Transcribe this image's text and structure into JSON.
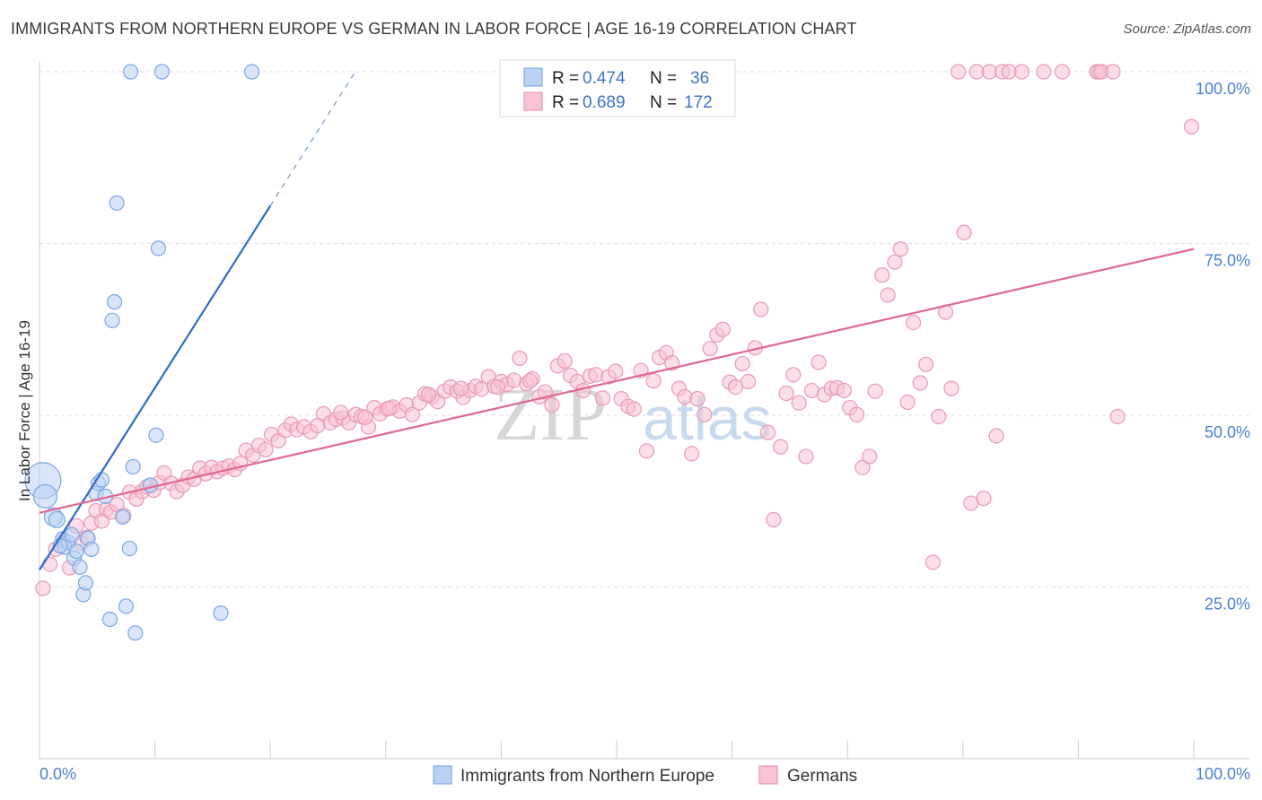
{
  "title": "IMMIGRANTS FROM NORTHERN EUROPE VS GERMAN IN LABOR FORCE | AGE 16-19 CORRELATION CHART",
  "source": "Source: ZipAtlas.com",
  "watermark": {
    "zip": "ZIP",
    "atlas": "atlas"
  },
  "legend_box": [
    {
      "r_label": "R =",
      "r_value": "0.474",
      "n_label": "N =",
      "n_value": "36",
      "fill": "#b9d2f4",
      "stroke": "#6f9ee0"
    },
    {
      "r_label": "R =",
      "r_value": "0.689",
      "n_label": "N =",
      "n_value": "172",
      "fill": "#f8c3d4",
      "stroke": "#e589a8"
    }
  ],
  "colors": {
    "blue_fill": "#b9d2f4",
    "blue_stroke": "#7aa6e3",
    "blue_line": "#2d6cc9",
    "pink_fill": "#f8c3d4",
    "pink_stroke": "#e999b4",
    "pink_line": "#e0678f",
    "grid": "#dddddd",
    "axis_label": "#4a7fd0"
  },
  "chart_data": {
    "type": "scatter",
    "title": "IMMIGRANTS FROM NORTHERN EUROPE VS GERMAN IN LABOR FORCE | AGE 16-19 CORRELATION CHART",
    "xlabel": "",
    "ylabel": "In Labor Force | Age 16-19",
    "xlim": [
      0,
      100
    ],
    "ylim": [
      0,
      100
    ],
    "x_tick_labels": [
      "0.0%",
      "100.0%"
    ],
    "y_tick_labels": [
      "25.0%",
      "50.0%",
      "75.0%",
      "100.0%"
    ],
    "y_ticks": [
      25,
      50,
      75,
      100
    ],
    "grid": true,
    "legend_position": "top-center",
    "series": [
      {
        "name": "Immigrants from Northern Europe",
        "color": "#b9d2f4",
        "stats": {
          "R": 0.474,
          "N": 36
        },
        "trend": {
          "x": [
            0,
            20
          ],
          "y": [
            27.5,
            80.5
          ],
          "dashed_to": [
            27.5,
            100
          ]
        },
        "points": [
          [
            0.3,
            40.5,
            20
          ],
          [
            0.5,
            38.2,
            13
          ],
          [
            1.2,
            35.2,
            10
          ],
          [
            1.5,
            34.8,
            9
          ],
          [
            2.0,
            32.0,
            8
          ],
          [
            2.2,
            30.8,
            8
          ],
          [
            3.0,
            29.2,
            8
          ],
          [
            3.5,
            27.9,
            8
          ],
          [
            4.2,
            32.1,
            8
          ],
          [
            4.5,
            30.5,
            8
          ],
          [
            3.8,
            23.9,
            8
          ],
          [
            4.0,
            25.6,
            8
          ],
          [
            4.9,
            38.6,
            8
          ],
          [
            5.1,
            40.1,
            8
          ],
          [
            5.4,
            40.6,
            8
          ],
          [
            5.7,
            38.2,
            8
          ],
          [
            7.2,
            35.2,
            8
          ],
          [
            7.8,
            30.6,
            8
          ],
          [
            6.1,
            20.3,
            8
          ],
          [
            7.5,
            22.2,
            8
          ],
          [
            8.3,
            18.3,
            8
          ],
          [
            9.6,
            39.8,
            8
          ],
          [
            10.1,
            47.1,
            8
          ],
          [
            8.1,
            42.5,
            8
          ],
          [
            6.3,
            63.8,
            8
          ],
          [
            6.5,
            66.5,
            8
          ],
          [
            6.7,
            80.9,
            8
          ],
          [
            10.3,
            74.3,
            8
          ],
          [
            7.9,
            100,
            8
          ],
          [
            10.6,
            100,
            8
          ],
          [
            18.4,
            100,
            8
          ],
          [
            15.7,
            21.2,
            8
          ],
          [
            2.5,
            31.5,
            8
          ],
          [
            1.8,
            31.0,
            8
          ],
          [
            3.2,
            30.2,
            8
          ],
          [
            2.8,
            32.6,
            8
          ]
        ]
      },
      {
        "name": "Germans",
        "color": "#f8c3d4",
        "stats": {
          "R": 0.689,
          "N": 172
        },
        "trend": {
          "x": [
            0,
            100
          ],
          "y": [
            35.8,
            74.2
          ]
        },
        "points": [
          [
            0.3,
            24.8,
            8
          ],
          [
            0.9,
            28.3,
            8
          ],
          [
            1.4,
            30.5,
            8
          ],
          [
            2.1,
            31.8,
            8
          ],
          [
            2.6,
            27.8,
            8
          ],
          [
            3.2,
            33.9,
            8
          ],
          [
            3.6,
            31.4,
            8
          ],
          [
            4.1,
            32.2,
            8
          ],
          [
            4.5,
            34.3,
            8
          ],
          [
            4.9,
            36.1,
            8
          ],
          [
            5.4,
            34.6,
            8
          ],
          [
            5.8,
            36.3,
            8
          ],
          [
            6.2,
            35.9,
            8
          ],
          [
            6.7,
            37.0,
            8
          ],
          [
            7.3,
            35.4,
            8
          ],
          [
            7.8,
            38.8,
            8
          ],
          [
            8.4,
            37.8,
            8
          ],
          [
            8.9,
            38.9,
            8
          ],
          [
            9.3,
            39.6,
            8
          ],
          [
            9.9,
            39.1,
            8
          ],
          [
            10.4,
            40.2,
            8
          ],
          [
            10.8,
            41.6,
            8
          ],
          [
            11.4,
            40.1,
            8
          ],
          [
            11.9,
            38.9,
            8
          ],
          [
            12.4,
            39.8,
            8
          ],
          [
            12.9,
            41.0,
            8
          ],
          [
            13.4,
            40.7,
            8
          ],
          [
            13.9,
            42.3,
            8
          ],
          [
            14.4,
            41.5,
            8
          ],
          [
            14.9,
            42.4,
            8
          ],
          [
            15.4,
            41.8,
            8
          ],
          [
            15.9,
            42.3,
            8
          ],
          [
            16.4,
            42.6,
            8
          ],
          [
            16.9,
            42.1,
            8
          ],
          [
            17.4,
            43.0,
            8
          ],
          [
            17.9,
            44.9,
            8
          ],
          [
            18.5,
            44.2,
            8
          ],
          [
            19.0,
            45.6,
            8
          ],
          [
            19.6,
            45.0,
            8
          ],
          [
            20.1,
            47.2,
            8
          ],
          [
            20.7,
            46.3,
            8
          ],
          [
            21.3,
            47.8,
            8
          ],
          [
            21.8,
            48.7,
            8
          ],
          [
            22.3,
            47.9,
            8
          ],
          [
            22.9,
            48.3,
            8
          ],
          [
            23.5,
            47.6,
            8
          ],
          [
            24.1,
            48.5,
            8
          ],
          [
            24.6,
            50.2,
            8
          ],
          [
            25.2,
            48.9,
            8
          ],
          [
            25.7,
            49.4,
            8
          ],
          [
            26.3,
            49.6,
            8
          ],
          [
            26.8,
            48.9,
            8
          ],
          [
            27.4,
            50.1,
            8
          ],
          [
            27.9,
            49.8,
            8
          ],
          [
            28.5,
            48.3,
            8
          ],
          [
            29.0,
            51.1,
            8
          ],
          [
            29.5,
            50.2,
            8
          ],
          [
            30.1,
            50.9,
            8
          ],
          [
            30.6,
            51.2,
            8
          ],
          [
            31.2,
            50.6,
            8
          ],
          [
            31.8,
            51.5,
            8
          ],
          [
            32.3,
            50.1,
            8
          ],
          [
            32.9,
            51.8,
            8
          ],
          [
            33.4,
            53.1,
            8
          ],
          [
            34.0,
            52.7,
            8
          ],
          [
            34.5,
            52.0,
            8
          ],
          [
            35.1,
            53.5,
            8
          ],
          [
            35.6,
            54.1,
            8
          ],
          [
            36.2,
            53.5,
            8
          ],
          [
            36.7,
            52.6,
            8
          ],
          [
            37.3,
            53.6,
            8
          ],
          [
            37.8,
            54.2,
            8
          ],
          [
            38.3,
            53.8,
            8
          ],
          [
            38.9,
            55.6,
            8
          ],
          [
            39.4,
            54.2,
            8
          ],
          [
            40.0,
            54.9,
            8
          ],
          [
            40.5,
            54.5,
            8
          ],
          [
            41.1,
            55.1,
            8
          ],
          [
            41.6,
            58.3,
            8
          ],
          [
            42.2,
            54.6,
            8
          ],
          [
            42.7,
            55.3,
            8
          ],
          [
            43.3,
            52.7,
            8
          ],
          [
            43.8,
            53.4,
            8
          ],
          [
            44.4,
            51.5,
            8
          ],
          [
            44.9,
            57.2,
            8
          ],
          [
            45.5,
            57.9,
            8
          ],
          [
            46.0,
            55.8,
            8
          ],
          [
            46.6,
            54.9,
            8
          ],
          [
            47.1,
            53.6,
            8
          ],
          [
            47.7,
            55.7,
            8
          ],
          [
            48.2,
            55.9,
            8
          ],
          [
            48.8,
            52.5,
            8
          ],
          [
            49.3,
            55.6,
            8
          ],
          [
            49.9,
            56.4,
            8
          ],
          [
            50.4,
            52.4,
            8
          ],
          [
            51.0,
            51.3,
            8
          ],
          [
            51.5,
            50.9,
            8
          ],
          [
            52.1,
            56.5,
            8
          ],
          [
            52.6,
            44.8,
            8
          ],
          [
            53.2,
            55.0,
            8
          ],
          [
            53.7,
            58.4,
            8
          ],
          [
            54.3,
            59.1,
            8
          ],
          [
            54.8,
            57.6,
            8
          ],
          [
            55.4,
            53.9,
            8
          ],
          [
            55.9,
            52.7,
            8
          ],
          [
            56.5,
            44.4,
            8
          ],
          [
            57.0,
            52.4,
            8
          ],
          [
            57.6,
            50.1,
            8
          ],
          [
            58.1,
            59.7,
            8
          ],
          [
            58.7,
            61.7,
            8
          ],
          [
            59.2,
            62.5,
            8
          ],
          [
            59.8,
            54.8,
            8
          ],
          [
            60.3,
            54.1,
            8
          ],
          [
            60.9,
            57.5,
            8
          ],
          [
            61.4,
            54.9,
            8
          ],
          [
            62.0,
            59.8,
            8
          ],
          [
            62.5,
            65.4,
            8
          ],
          [
            63.1,
            47.5,
            8
          ],
          [
            63.6,
            34.8,
            8
          ],
          [
            64.2,
            45.4,
            8
          ],
          [
            64.7,
            53.2,
            8
          ],
          [
            65.3,
            55.9,
            8
          ],
          [
            65.8,
            51.8,
            8
          ],
          [
            66.4,
            44.0,
            8
          ],
          [
            66.9,
            53.6,
            8
          ],
          [
            67.5,
            57.7,
            8
          ],
          [
            68.0,
            53.0,
            8
          ],
          [
            68.6,
            53.9,
            8
          ],
          [
            69.1,
            54.0,
            8
          ],
          [
            69.7,
            53.6,
            8
          ],
          [
            70.2,
            51.1,
            8
          ],
          [
            70.8,
            50.1,
            8
          ],
          [
            71.3,
            42.4,
            8
          ],
          [
            71.9,
            44.0,
            8
          ],
          [
            72.4,
            53.5,
            8
          ],
          [
            73.0,
            70.4,
            8
          ],
          [
            73.5,
            67.5,
            8
          ],
          [
            74.1,
            72.3,
            8
          ],
          [
            74.6,
            74.2,
            8
          ],
          [
            75.2,
            51.9,
            8
          ],
          [
            75.7,
            63.5,
            8
          ],
          [
            76.3,
            54.7,
            8
          ],
          [
            76.8,
            57.4,
            8
          ],
          [
            77.4,
            28.6,
            8
          ],
          [
            77.9,
            49.8,
            8
          ],
          [
            78.5,
            65.0,
            8
          ],
          [
            79.0,
            53.9,
            8
          ],
          [
            79.6,
            100,
            8
          ],
          [
            80.1,
            76.6,
            8
          ],
          [
            80.7,
            37.2,
            8
          ],
          [
            81.2,
            100,
            8
          ],
          [
            81.8,
            37.9,
            8
          ],
          [
            82.3,
            100,
            8
          ],
          [
            82.9,
            47.0,
            8
          ],
          [
            83.4,
            100,
            8
          ],
          [
            84.0,
            100,
            8
          ],
          [
            85.1,
            100,
            8
          ],
          [
            87.0,
            100,
            8
          ],
          [
            88.6,
            100,
            8
          ],
          [
            91.6,
            100,
            8
          ],
          [
            91.8,
            100,
            8
          ],
          [
            92.0,
            100,
            8
          ],
          [
            93.0,
            100,
            8
          ],
          [
            93.4,
            49.8,
            8
          ],
          [
            99.8,
            92.0,
            8
          ],
          [
            26.1,
            50.4,
            8
          ],
          [
            28.2,
            49.7,
            8
          ],
          [
            30.3,
            51.0,
            8
          ],
          [
            33.7,
            53.0,
            8
          ],
          [
            36.5,
            53.9,
            8
          ],
          [
            39.7,
            54.1,
            8
          ],
          [
            42.5,
            55.0,
            8
          ]
        ]
      }
    ],
    "bottom_legend": [
      "Immigrants from Northern Europe",
      "Germans"
    ]
  }
}
